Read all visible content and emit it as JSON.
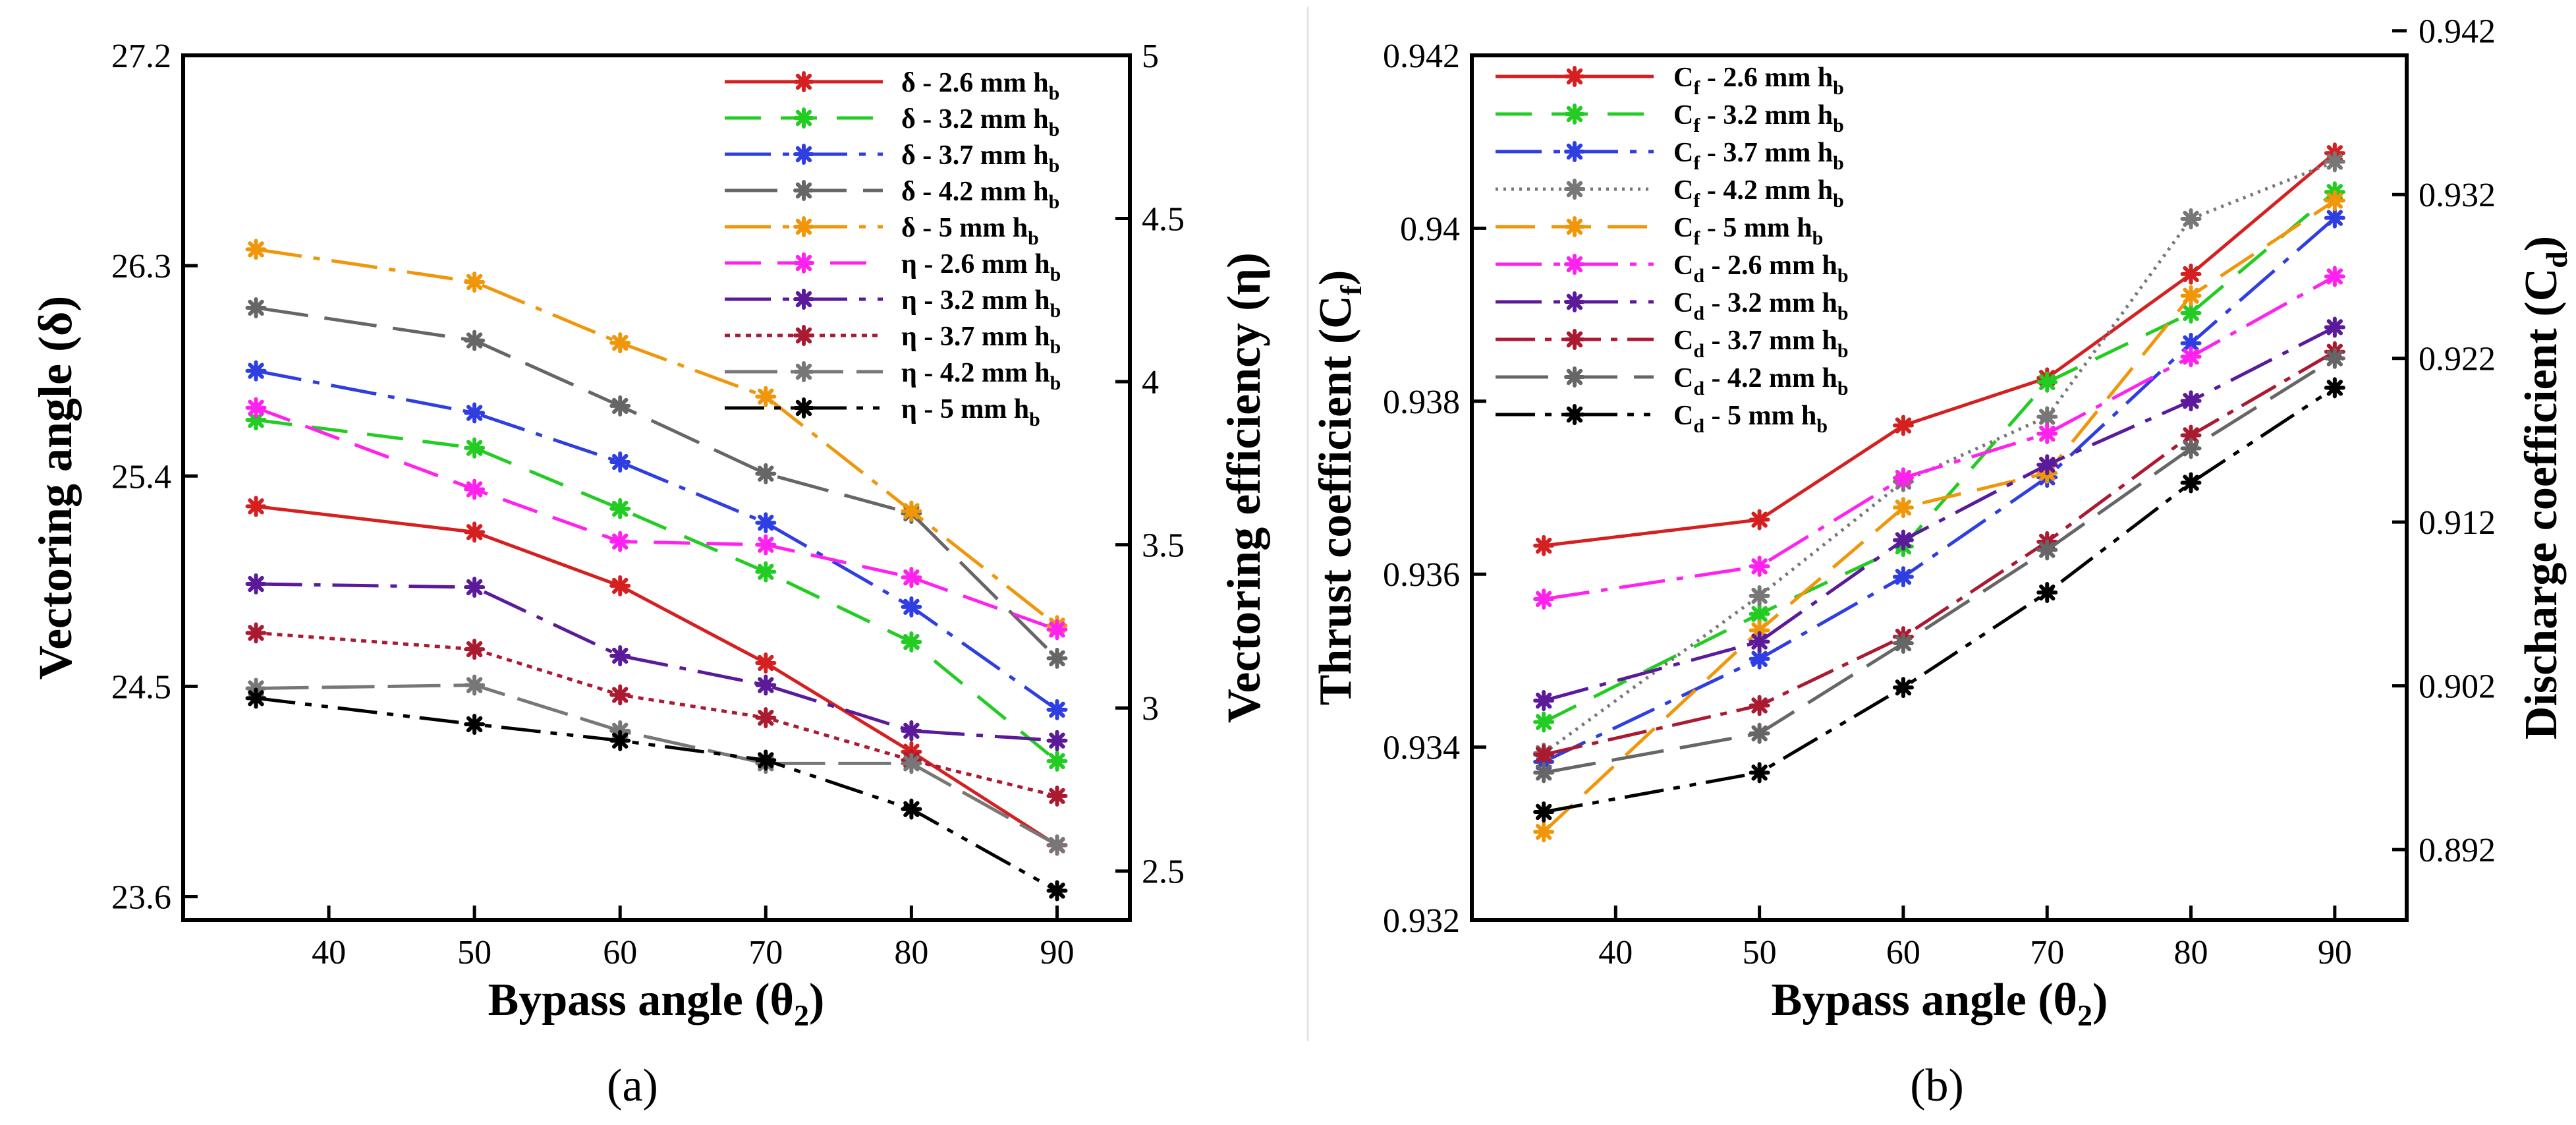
{
  "chart_data": [
    {
      "type": "line",
      "panel_label": "(a)",
      "xlabel": "Bypass angle (θ",
      "xlabel_sub": "2",
      "xlabel_end": ")",
      "ylabel": "Vectoring angle (δ)",
      "y2label": "Vectoring efficiency (η)",
      "x": [
        35,
        50,
        60,
        70,
        80,
        90
      ],
      "xlim": [
        30,
        95
      ],
      "ylim": [
        23.5,
        27.2
      ],
      "y2lim": [
        2.35,
        5.0
      ],
      "xticks": [
        "40",
        "50",
        "60",
        "70",
        "80",
        "90"
      ],
      "xtick_values": [
        40,
        50,
        60,
        70,
        80,
        90
      ],
      "yticks": [
        "23.6",
        "24.5",
        "25.4",
        "26.3",
        "27.2"
      ],
      "ytick_values": [
        23.6,
        24.5,
        25.4,
        26.3,
        27.2
      ],
      "y2ticks": [
        "2.5",
        "3",
        "3.5",
        "4",
        "4.5",
        "5"
      ],
      "y2tick_values": [
        2.5,
        3.0,
        3.5,
        4.0,
        4.5,
        5.0
      ],
      "series": [
        {
          "name": "δ -  2.6 mm h",
          "sub": "b",
          "axis": "left",
          "color": "#d42020",
          "dash": "",
          "values": [
            25.27,
            25.16,
            24.93,
            24.6,
            24.22,
            23.82
          ]
        },
        {
          "name": "δ -  3.2 mm h",
          "sub": "b",
          "axis": "left",
          "color": "#22cc22",
          "dash": "55,30",
          "values": [
            25.64,
            25.52,
            25.26,
            24.99,
            24.69,
            24.18
          ]
        },
        {
          "name": "δ -  3.7 mm h",
          "sub": "b",
          "axis": "left",
          "color": "#2e3ee0",
          "dash": "70,18,10,18",
          "values": [
            25.85,
            25.67,
            25.46,
            25.2,
            24.84,
            24.4
          ]
        },
        {
          "name": "δ -  4.2 mm h",
          "sub": "b",
          "axis": "left",
          "color": "#666666",
          "dash": "80,25",
          "values": [
            26.12,
            25.98,
            25.7,
            25.41,
            25.24,
            24.62
          ]
        },
        {
          "name": "δ -  5 mm h",
          "sub": "b",
          "axis": "left",
          "color": "#f0960a",
          "dash": "70,18,10,18",
          "values": [
            26.37,
            26.23,
            25.97,
            25.74,
            25.25,
            24.76
          ]
        },
        {
          "name": "η - 2.6 mm h",
          "sub": "b",
          "axis": "right",
          "color": "#ff22ee",
          "dash": "55,25",
          "values": [
            3.92,
            3.67,
            3.51,
            3.5,
            3.4,
            3.24
          ]
        },
        {
          "name": "η - 3.2 mm h",
          "sub": "b",
          "axis": "right",
          "color": "#5a1a9a",
          "dash": "70,18,10,18",
          "values": [
            3.38,
            3.37,
            3.16,
            3.07,
            2.93,
            2.9
          ]
        },
        {
          "name": "η - 3.7 mm h",
          "sub": "b",
          "axis": "right",
          "color": "#aa1a30",
          "dash": "8,8",
          "values": [
            3.23,
            3.18,
            3.04,
            2.97,
            2.84,
            2.73
          ]
        },
        {
          "name": "η - 4.2 mm h",
          "sub": "b",
          "axis": "right",
          "color": "#777777",
          "dash": "80,20",
          "values": [
            3.06,
            3.07,
            2.93,
            2.83,
            2.83,
            2.58
          ]
        },
        {
          "name": "η - 5 mm h",
          "sub": "b",
          "axis": "right",
          "color": "#000000",
          "dash": "60,15,10,15,10,15",
          "values": [
            3.03,
            2.95,
            2.9,
            2.84,
            2.69,
            2.44
          ]
        }
      ]
    },
    {
      "type": "line",
      "panel_label": "(b)",
      "xlabel": "Bypass angle (θ",
      "xlabel_sub": "2",
      "xlabel_end": ")",
      "ylabel": "Thrust coefficient (C",
      "ylabel_sub": "f",
      "ylabel_end": ")",
      "y2label": "Discharge coefficient (C",
      "y2label_sub": "d",
      "y2label_end": ")",
      "x": [
        35,
        50,
        60,
        70,
        80,
        90
      ],
      "xlim": [
        30,
        95
      ],
      "ylim": [
        0.932,
        0.942
      ],
      "y2lim": [
        0.8877,
        0.9405
      ],
      "xticks": [
        "40",
        "50",
        "60",
        "70",
        "80",
        "90"
      ],
      "xtick_values": [
        40,
        50,
        60,
        70,
        80,
        90
      ],
      "yticks": [
        "0.932",
        "0.934",
        "0.936",
        "0.938",
        "0.94",
        "0.942"
      ],
      "ytick_values": [
        0.932,
        0.934,
        0.936,
        0.938,
        0.94,
        0.942
      ],
      "y2ticks": [
        "0.892",
        "0.902",
        "0.912",
        "0.922",
        "0.932",
        "0.942"
      ],
      "y2tick_values": [
        0.892,
        0.902,
        0.912,
        0.922,
        0.932,
        0.942
      ],
      "series": [
        {
          "name": "C",
          "sub": "f",
          "name_end": " - 2.6 mm h",
          "sub2": "b",
          "axis": "left",
          "color": "#d42020",
          "dash": "",
          "values": [
            0.93633,
            0.93663,
            0.93772,
            0.93827,
            0.93947,
            0.94087
          ]
        },
        {
          "name": "C",
          "sub": "f",
          "name_end": " - 3.2 mm h",
          "sub2": "b",
          "axis": "left",
          "color": "#22cc22",
          "dash": "55,30",
          "values": [
            0.93429,
            0.93554,
            0.93632,
            0.93822,
            0.93902,
            0.94042
          ]
        },
        {
          "name": "C",
          "sub": "f",
          "name_end": " - 3.7 mm h",
          "sub2": "b",
          "axis": "left",
          "color": "#2e3ee0",
          "dash": "70,18,10,18",
          "values": [
            0.93383,
            0.93502,
            0.93597,
            0.93712,
            0.93867,
            0.94012
          ]
        },
        {
          "name": "C",
          "sub": "f",
          "name_end": " - 4.2 mm h",
          "sub2": "b",
          "axis": "left",
          "color": "#777777",
          "dash": "4,8",
          "values": [
            0.93393,
            0.93575,
            0.93707,
            0.93782,
            0.94011,
            0.94077
          ]
        },
        {
          "name": "C",
          "sub": "f",
          "name_end": " - 5 mm h",
          "sub2": "b",
          "axis": "left",
          "color": "#f0960a",
          "dash": "60,25",
          "values": [
            0.93302,
            0.93535,
            0.93677,
            0.93717,
            0.93922,
            0.94032
          ]
        },
        {
          "name": "C",
          "sub": "d",
          "name_end": " - 2.6 mm h",
          "sub2": "b",
          "axis": "right",
          "color": "#ff22ee",
          "dash": "70,18,10,18",
          "values": [
            0.9073,
            0.9093,
            0.9147,
            0.9174,
            0.9221,
            0.927
          ]
        },
        {
          "name": "C",
          "sub": "d",
          "name_end": " - 3.2 mm h",
          "sub2": "b",
          "axis": "right",
          "color": "#5a1a9a",
          "dash": "70,18,10,18",
          "values": [
            0.9011,
            0.9047,
            0.9109,
            0.9155,
            0.9194,
            0.9239
          ]
        },
        {
          "name": "C",
          "sub": "d",
          "name_end": " - 3.7 mm h",
          "sub2": "b",
          "axis": "right",
          "color": "#aa1a30",
          "dash": "60,15,10,15",
          "values": [
            0.8978,
            0.9008,
            0.905,
            0.9108,
            0.9173,
            0.9224
          ]
        },
        {
          "name": "C",
          "sub": "d",
          "name_end": " - 4.2 mm h",
          "sub2": "b",
          "axis": "right",
          "color": "#666666",
          "dash": "80,25",
          "values": [
            0.8967,
            0.8991,
            0.9046,
            0.9103,
            0.9165,
            0.922
          ]
        },
        {
          "name": "C",
          "sub": "d",
          "name_end": " - 5 mm h",
          "sub2": "b",
          "axis": "right",
          "color": "#000000",
          "dash": "60,15,10,15,10,15",
          "values": [
            0.8943,
            0.8967,
            0.9019,
            0.9077,
            0.9144,
            0.9202
          ]
        }
      ]
    }
  ]
}
